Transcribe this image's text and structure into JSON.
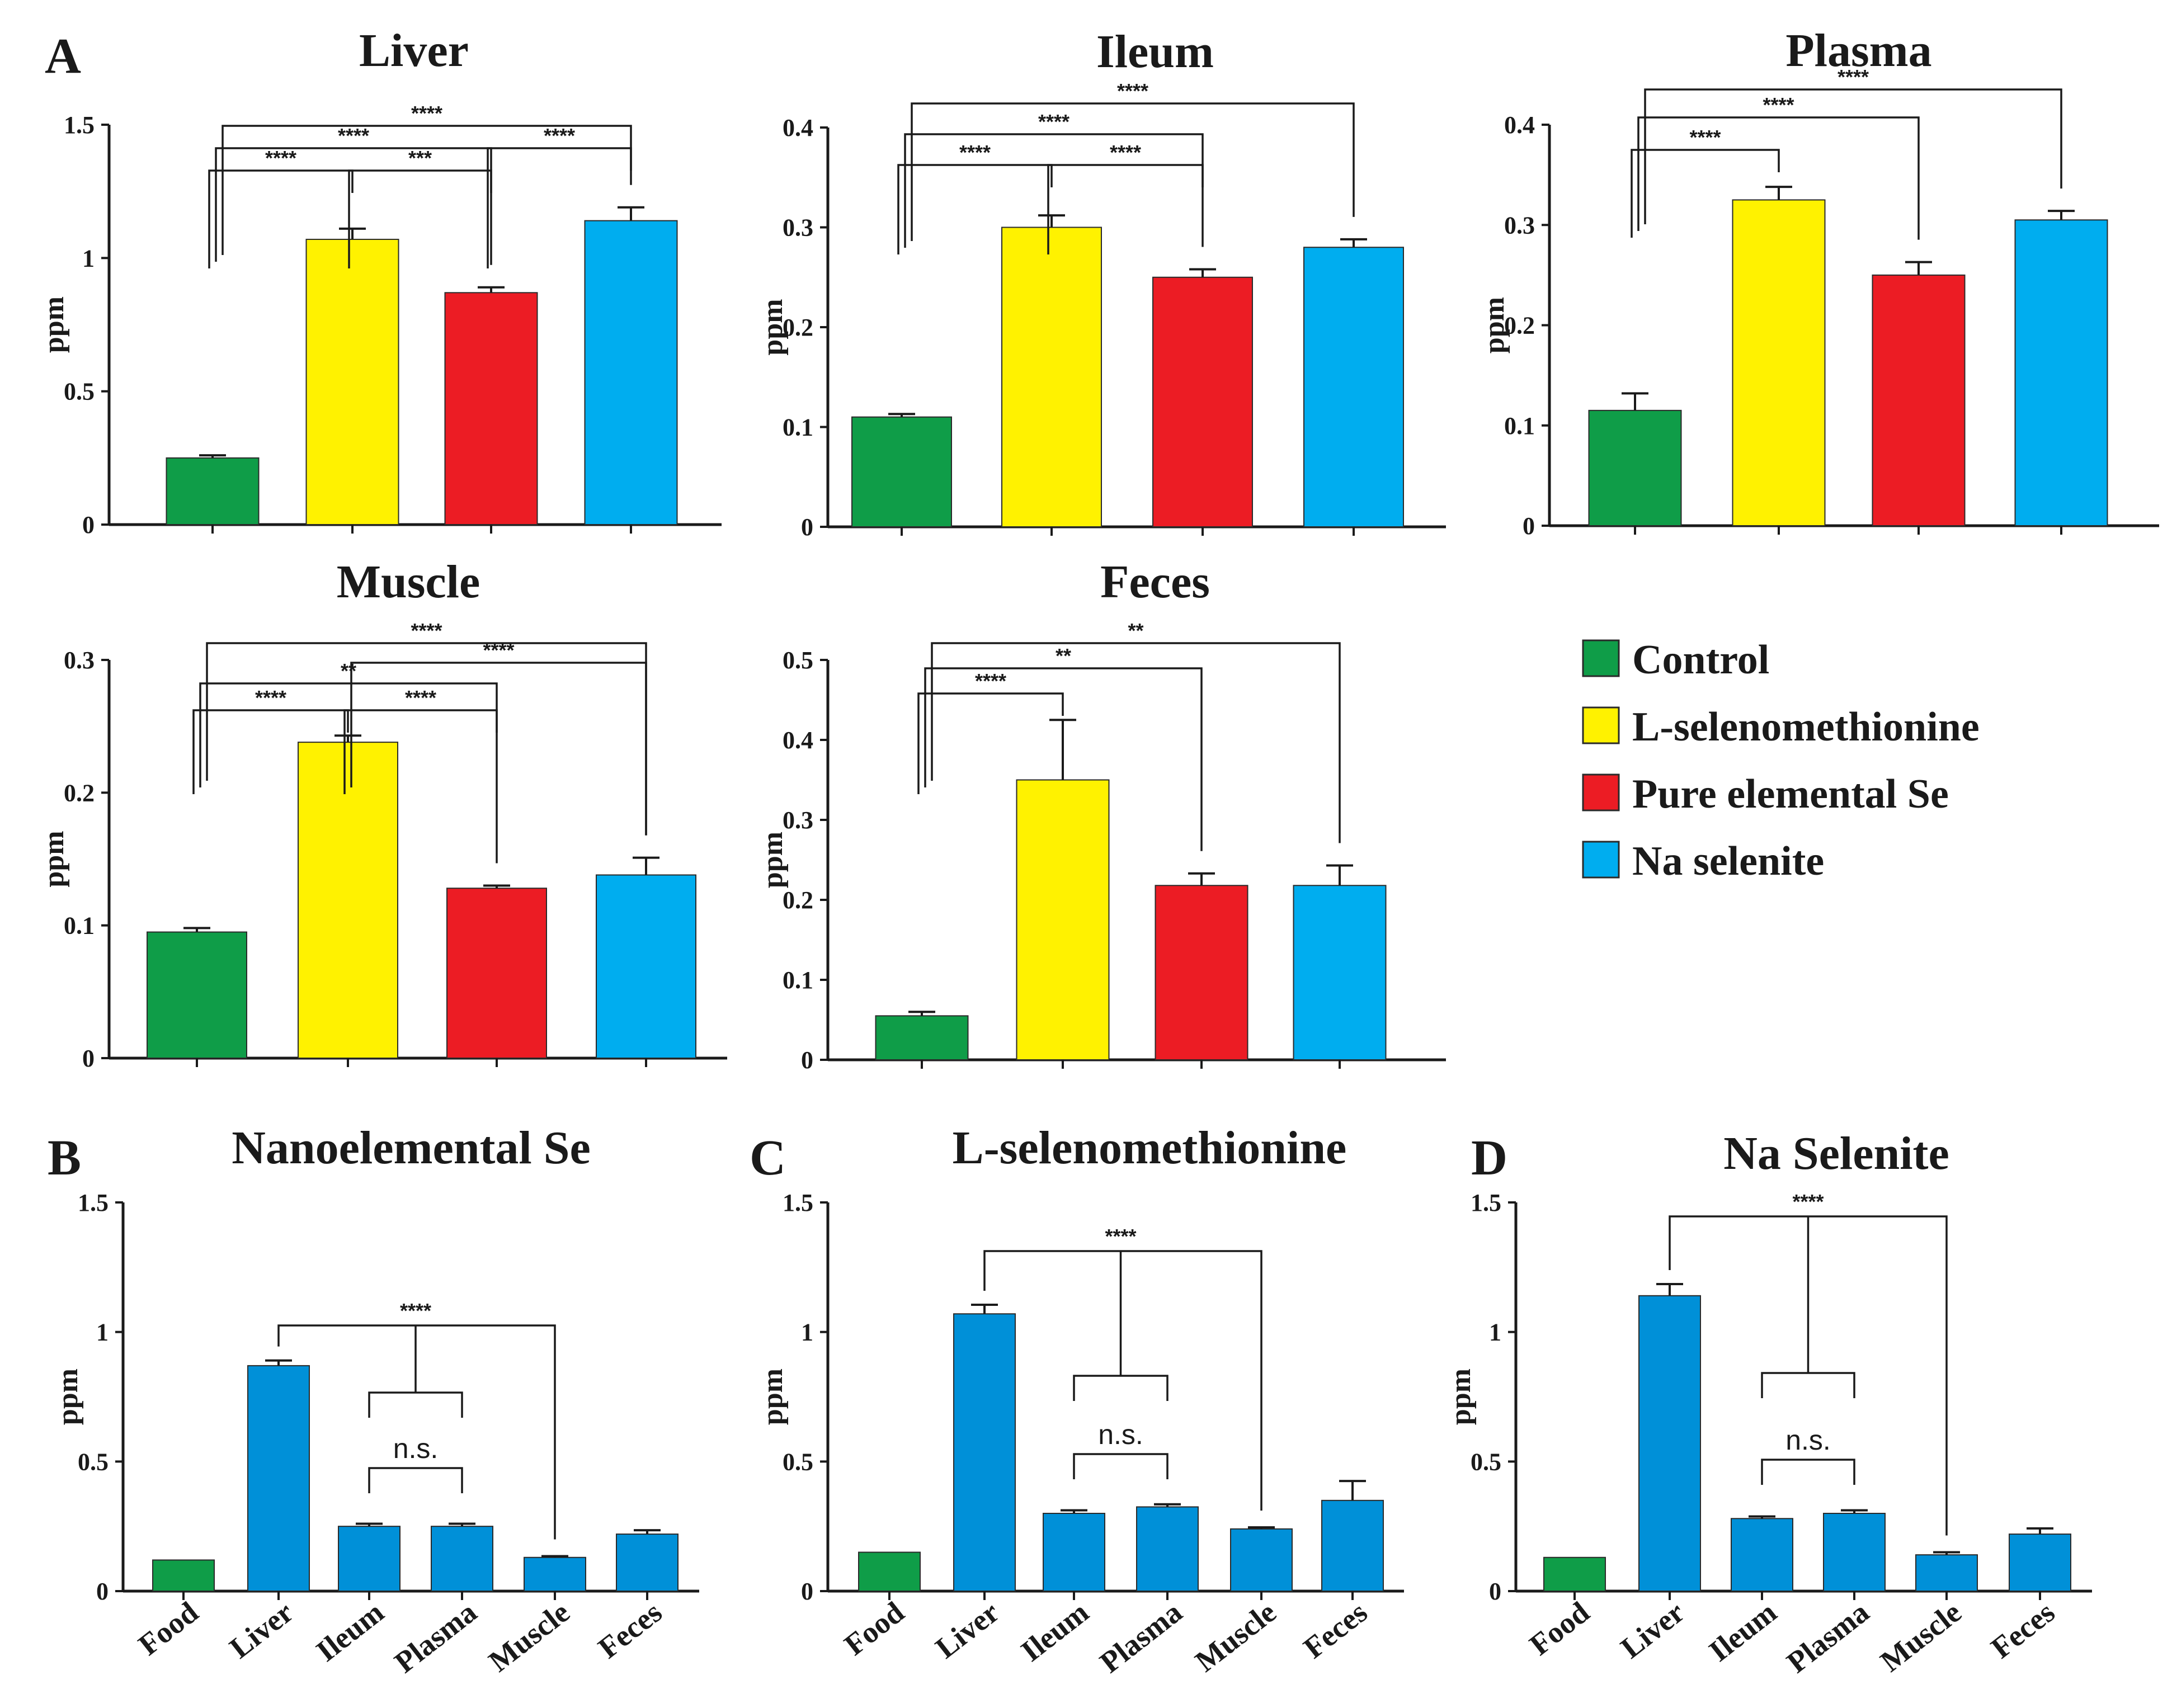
{
  "chart_data": [
    {
      "panel": "A",
      "title": "Liver",
      "ylabel": "ppm",
      "type": "bar",
      "ylim": [
        0,
        1.5
      ],
      "yticks": [
        0,
        0.5,
        1,
        1.5
      ],
      "ytick_labels": [
        "0",
        "0.5",
        "1",
        "1.5"
      ],
      "categories": [
        "Control",
        "L-selenomethionine",
        "Pure elemental Se",
        "Na selenite"
      ],
      "values": [
        0.25,
        1.07,
        0.87,
        1.14
      ],
      "errors": [
        0.01,
        0.04,
        0.02,
        0.05
      ],
      "significance": [
        {
          "from": 0,
          "to": 1,
          "label": "****"
        },
        {
          "from": 1,
          "to": 2,
          "label": "***"
        },
        {
          "from": 0,
          "to": 2,
          "label": "****"
        },
        {
          "from": 2,
          "to": 3,
          "label": "****"
        },
        {
          "from": 0,
          "to": 3,
          "label": "****"
        }
      ]
    },
    {
      "panel": "",
      "title": "Ileum",
      "ylabel": "ppm",
      "type": "bar",
      "ylim": [
        0,
        0.4
      ],
      "yticks": [
        0,
        0.1,
        0.2,
        0.3,
        0.4
      ],
      "ytick_labels": [
        "0",
        "0.1",
        "0.2",
        "0.3",
        "0.4"
      ],
      "categories": [
        "Control",
        "L-selenomethionine",
        "Pure elemental Se",
        "Na selenite"
      ],
      "values": [
        0.11,
        0.3,
        0.25,
        0.28
      ],
      "errors": [
        0.003,
        0.012,
        0.008,
        0.008
      ],
      "significance": [
        {
          "from": 0,
          "to": 1,
          "label": "****"
        },
        {
          "from": 1,
          "to": 2,
          "label": "****"
        },
        {
          "from": 0,
          "to": 2,
          "label": "****"
        },
        {
          "from": 0,
          "to": 3,
          "label": "****"
        }
      ]
    },
    {
      "panel": "",
      "title": "Plasma",
      "ylabel": "ppm",
      "type": "bar",
      "ylim": [
        0,
        0.4
      ],
      "yticks": [
        0,
        0.1,
        0.2,
        0.3,
        0.4
      ],
      "ytick_labels": [
        "0",
        "0.1",
        "0.2",
        "0.3",
        "0.4"
      ],
      "categories": [
        "Control",
        "L-selenomethionine",
        "Pure elemental Se",
        "Na selenite"
      ],
      "values": [
        0.115,
        0.325,
        0.25,
        0.305
      ],
      "errors": [
        0.017,
        0.013,
        0.013,
        0.009
      ],
      "significance": [
        {
          "from": 0,
          "to": 1,
          "label": "****"
        },
        {
          "from": 0,
          "to": 2,
          "label": "****"
        },
        {
          "from": 0,
          "to": 3,
          "label": "****"
        }
      ]
    },
    {
      "panel": "",
      "title": "Muscle",
      "ylabel": "ppm",
      "type": "bar",
      "ylim": [
        0,
        0.3
      ],
      "yticks": [
        0,
        0.1,
        0.2,
        0.3
      ],
      "ytick_labels": [
        "0",
        "0.1",
        "0.2",
        "0.3"
      ],
      "categories": [
        "Control",
        "L-selenomethionine",
        "Pure elemental Se",
        "Na selenite"
      ],
      "values": [
        0.095,
        0.238,
        0.128,
        0.138
      ],
      "errors": [
        0.003,
        0.005,
        0.002,
        0.013
      ],
      "significance": [
        {
          "from": 0,
          "to": 1,
          "label": "****"
        },
        {
          "from": 1,
          "to": 2,
          "label": "****"
        },
        {
          "from": 0,
          "to": 2,
          "label": "**"
        },
        {
          "from": 1,
          "to": 3,
          "label": "****"
        },
        {
          "from": 0,
          "to": 3,
          "label": "****"
        }
      ]
    },
    {
      "panel": "",
      "title": "Feces",
      "ylabel": "ppm",
      "type": "bar",
      "ylim": [
        0,
        0.5
      ],
      "yticks": [
        0,
        0.1,
        0.2,
        0.3,
        0.4,
        0.5
      ],
      "ytick_labels": [
        "0",
        "0.1",
        "0.2",
        "0.3",
        "0.4",
        "0.5"
      ],
      "categories": [
        "Control",
        "L-selenomethionine",
        "Pure elemental Se",
        "Na selenite"
      ],
      "values": [
        0.055,
        0.35,
        0.218,
        0.218
      ],
      "errors": [
        0.005,
        0.075,
        0.015,
        0.025
      ],
      "significance": [
        {
          "from": 0,
          "to": 1,
          "label": "****"
        },
        {
          "from": 0,
          "to": 2,
          "label": "**"
        },
        {
          "from": 0,
          "to": 3,
          "label": "**"
        }
      ]
    },
    {
      "panel": "B",
      "title": "Nanoelemental Se",
      "ylabel": "ppm",
      "type": "bar",
      "ylim": [
        0,
        1.5
      ],
      "yticks": [
        0,
        0.5,
        1,
        1.5
      ],
      "ytick_labels": [
        "0",
        "0.5",
        "1",
        "1.5"
      ],
      "categories": [
        "Food",
        "Liver",
        "Ileum",
        "Plasma",
        "Muscle",
        "Feces"
      ],
      "values": [
        0.12,
        0.87,
        0.25,
        0.25,
        0.13,
        0.22
      ],
      "errors": [
        0,
        0.02,
        0.01,
        0.01,
        0.005,
        0.015
      ],
      "brackets": [
        {
          "kind": "nested",
          "label": "****"
        },
        {
          "kind": "pair",
          "from": 2,
          "to": 3,
          "label": "n.s."
        }
      ]
    },
    {
      "panel": "C",
      "title": "L-selenomethionine",
      "ylabel": "ppm",
      "type": "bar",
      "ylim": [
        0,
        1.5
      ],
      "yticks": [
        0,
        0.5,
        1,
        1.5
      ],
      "ytick_labels": [
        "0",
        "0.5",
        "1",
        "1.5"
      ],
      "categories": [
        "Food",
        "Liver",
        "Ileum",
        "Plasma",
        "Muscle",
        "Feces"
      ],
      "values": [
        0.15,
        1.07,
        0.3,
        0.325,
        0.24,
        0.35
      ],
      "errors": [
        0,
        0.035,
        0.012,
        0.01,
        0.006,
        0.075
      ],
      "brackets": [
        {
          "kind": "nested",
          "label": "****"
        },
        {
          "kind": "pair",
          "from": 2,
          "to": 3,
          "label": "n.s."
        }
      ]
    },
    {
      "panel": "D",
      "title": "Na Selenite",
      "ylabel": "ppm",
      "type": "bar",
      "ylim": [
        0,
        1.5
      ],
      "yticks": [
        0,
        0.5,
        1,
        1.5
      ],
      "ytick_labels": [
        "0",
        "0.5",
        "1",
        "1.5"
      ],
      "categories": [
        "Food",
        "Liver",
        "Ileum",
        "Plasma",
        "Muscle",
        "Feces"
      ],
      "values": [
        0.13,
        1.14,
        0.28,
        0.3,
        0.14,
        0.22
      ],
      "errors": [
        0,
        0.045,
        0.008,
        0.012,
        0.01,
        0.022
      ],
      "brackets": [
        {
          "kind": "nested",
          "label": "****"
        },
        {
          "kind": "pair",
          "from": 2,
          "to": 3,
          "label": "n.s."
        }
      ]
    }
  ],
  "legend": [
    {
      "label": "Control",
      "color": "#0f9d48"
    },
    {
      "label": "L-selenomethionine",
      "color": "#fff200"
    },
    {
      "label": "Pure elemental Se",
      "color": "#ec1c24"
    },
    {
      "label": "Na selenite",
      "color": "#00adef"
    }
  ],
  "colors": {
    "group": [
      "#0f9d48",
      "#fff200",
      "#ec1c24",
      "#00adef"
    ],
    "food": "#0f9d48",
    "tissue": "#0090d8",
    "text": "#1a1a1a"
  }
}
